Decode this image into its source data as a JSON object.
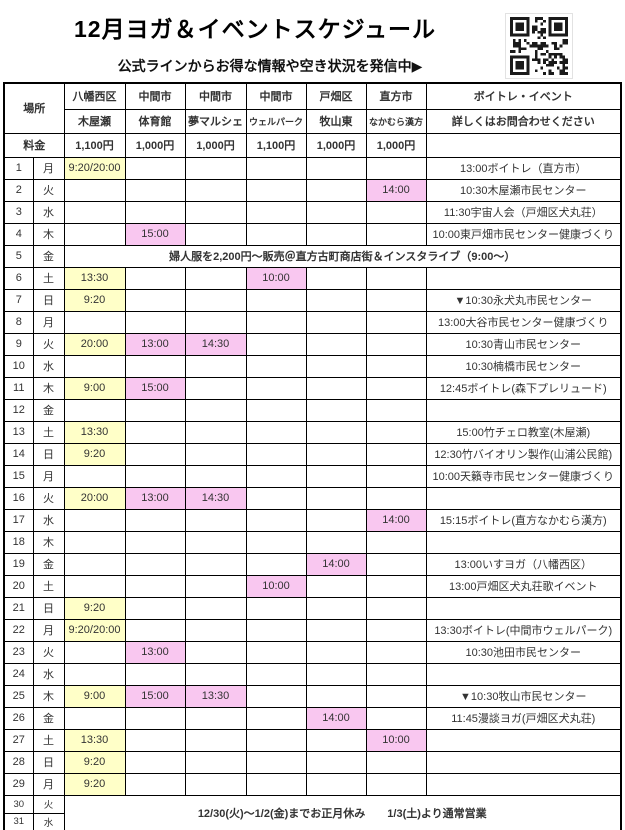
{
  "title": "12月ヨガ＆イベントスケジュール",
  "subtitle": "公式ラインからお得な情報や空き状況を発信中▶",
  "qr": {
    "name": "line-qr-code"
  },
  "colors": {
    "yellow": "#ffffc8",
    "pink": "#f9c7f0",
    "grid": "#000000"
  },
  "table": {
    "place_label": "場所",
    "price_label": "料金",
    "columns": [
      {
        "area": "八幡西区",
        "name": "木屋瀬",
        "price": "1,100円",
        "small_name": false
      },
      {
        "area": "中間市",
        "name": "体育館",
        "price": "1,000円",
        "small_name": false
      },
      {
        "area": "中間市",
        "name": "夢マルシェ",
        "price": "1,000円",
        "small_name": false
      },
      {
        "area": "中間市",
        "name": "ウェルパーク",
        "price": "1,100円",
        "small_name": true
      },
      {
        "area": "戸畑区",
        "name": "牧山東",
        "price": "1,000円",
        "small_name": false
      },
      {
        "area": "直方市",
        "name": "なかむら漢方",
        "price": "1,000円",
        "small_name": true
      },
      {
        "area": "ボイトレ・イベント",
        "name": "詳しくはお問合わせください",
        "price": "",
        "small_name": false
      }
    ],
    "rows": [
      {
        "date": "1",
        "dow": "月",
        "slots": [
          {
            "col": 1,
            "text": "9:20/20:00",
            "color": "yellow"
          }
        ],
        "event": "13:00ボイトレ（直方市）"
      },
      {
        "date": "2",
        "dow": "火",
        "slots": [
          {
            "col": 6,
            "text": "14:00",
            "color": "pink"
          }
        ],
        "event": "10:30木屋瀬市民センター"
      },
      {
        "date": "3",
        "dow": "水",
        "slots": [],
        "event": "11:30宇宙人会（戸畑区犬丸荘）"
      },
      {
        "date": "4",
        "dow": "木",
        "slots": [
          {
            "col": 2,
            "text": "15:00",
            "color": "pink"
          }
        ],
        "event": "10:00東戸畑市民センター健康づくり"
      },
      {
        "date": "5",
        "dow": "金",
        "merged": "婦人服を2,200円～販売＠直方古町商店街＆インスタライブ（9:00～）"
      },
      {
        "date": "6",
        "dow": "土",
        "slots": [
          {
            "col": 1,
            "text": "13:30",
            "color": "yellow"
          },
          {
            "col": 4,
            "text": "10:00",
            "color": "pink"
          }
        ],
        "event": ""
      },
      {
        "date": "7",
        "dow": "日",
        "slots": [
          {
            "col": 1,
            "text": "9:20",
            "color": "yellow"
          }
        ],
        "event": "▼10:30永犬丸市民センター"
      },
      {
        "date": "8",
        "dow": "月",
        "slots": [],
        "event": "13:00大谷市民センター健康づくり"
      },
      {
        "date": "9",
        "dow": "火",
        "slots": [
          {
            "col": 1,
            "text": "20:00",
            "color": "yellow"
          },
          {
            "col": 2,
            "text": "13:00",
            "color": "pink"
          },
          {
            "col": 3,
            "text": "14:30",
            "color": "pink"
          }
        ],
        "event": "10:30青山市民センター"
      },
      {
        "date": "10",
        "dow": "水",
        "slots": [],
        "event": "10:30楠橋市民センター"
      },
      {
        "date": "11",
        "dow": "木",
        "slots": [
          {
            "col": 1,
            "text": "9:00",
            "color": "yellow"
          },
          {
            "col": 2,
            "text": "15:00",
            "color": "pink"
          }
        ],
        "event": "12:45ボイトレ(森下プレリュード)"
      },
      {
        "date": "12",
        "dow": "金",
        "slots": [],
        "event": ""
      },
      {
        "date": "13",
        "dow": "土",
        "slots": [
          {
            "col": 1,
            "text": "13:30",
            "color": "yellow"
          }
        ],
        "event": "15:00竹チェロ教室(木屋瀬)"
      },
      {
        "date": "14",
        "dow": "日",
        "slots": [
          {
            "col": 1,
            "text": "9:20",
            "color": "yellow"
          }
        ],
        "event": "12:30竹バイオリン製作(山浦公民館)"
      },
      {
        "date": "15",
        "dow": "月",
        "slots": [],
        "event": "10:00天籟寺市民センター健康づくり"
      },
      {
        "date": "16",
        "dow": "火",
        "slots": [
          {
            "col": 1,
            "text": "20:00",
            "color": "yellow"
          },
          {
            "col": 2,
            "text": "13:00",
            "color": "pink"
          },
          {
            "col": 3,
            "text": "14:30",
            "color": "pink"
          }
        ],
        "event": ""
      },
      {
        "date": "17",
        "dow": "水",
        "slots": [
          {
            "col": 6,
            "text": "14:00",
            "color": "pink"
          }
        ],
        "event": "15:15ボイトレ(直方なかむら漢方)"
      },
      {
        "date": "18",
        "dow": "木",
        "slots": [],
        "event": ""
      },
      {
        "date": "19",
        "dow": "金",
        "slots": [
          {
            "col": 5,
            "text": "14:00",
            "color": "pink"
          }
        ],
        "event": "13:00いすヨガ（八幡西区）"
      },
      {
        "date": "20",
        "dow": "土",
        "slots": [
          {
            "col": 4,
            "text": "10:00",
            "color": "pink"
          }
        ],
        "event": "13:00戸畑区犬丸荘歌イベント"
      },
      {
        "date": "21",
        "dow": "日",
        "slots": [
          {
            "col": 1,
            "text": "9:20",
            "color": "yellow"
          }
        ],
        "event": ""
      },
      {
        "date": "22",
        "dow": "月",
        "slots": [
          {
            "col": 1,
            "text": "9:20/20:00",
            "color": "yellow"
          }
        ],
        "event": "13:30ボイトレ(中間市ウェルパーク)"
      },
      {
        "date": "23",
        "dow": "火",
        "slots": [
          {
            "col": 2,
            "text": "13:00",
            "color": "pink"
          }
        ],
        "event": "10:30池田市民センター"
      },
      {
        "date": "24",
        "dow": "水",
        "slots": [],
        "event": ""
      },
      {
        "date": "25",
        "dow": "木",
        "slots": [
          {
            "col": 1,
            "text": "9:00",
            "color": "yellow"
          },
          {
            "col": 2,
            "text": "15:00",
            "color": "pink"
          },
          {
            "col": 3,
            "text": "13:30",
            "color": "pink"
          }
        ],
        "event": "▼10:30牧山市民センター"
      },
      {
        "date": "26",
        "dow": "金",
        "slots": [
          {
            "col": 5,
            "text": "14:00",
            "color": "pink"
          }
        ],
        "event": "11:45漫談ヨガ(戸畑区犬丸荘)"
      },
      {
        "date": "27",
        "dow": "土",
        "slots": [
          {
            "col": 1,
            "text": "13:30",
            "color": "yellow"
          },
          {
            "col": 6,
            "text": "10:00",
            "color": "pink"
          }
        ],
        "event": ""
      },
      {
        "date": "28",
        "dow": "日",
        "slots": [
          {
            "col": 1,
            "text": "9:20",
            "color": "yellow"
          }
        ],
        "event": ""
      },
      {
        "date": "29",
        "dow": "月",
        "slots": [
          {
            "col": 1,
            "text": "9:20",
            "color": "yellow"
          }
        ],
        "event": ""
      }
    ],
    "footer_rows": [
      {
        "date": "30",
        "dow": "火"
      },
      {
        "date": "31",
        "dow": "水"
      }
    ],
    "footer_note": "12/30(火)～1/2(金)までお正月休み　　1/3(土)より通常営業"
  }
}
